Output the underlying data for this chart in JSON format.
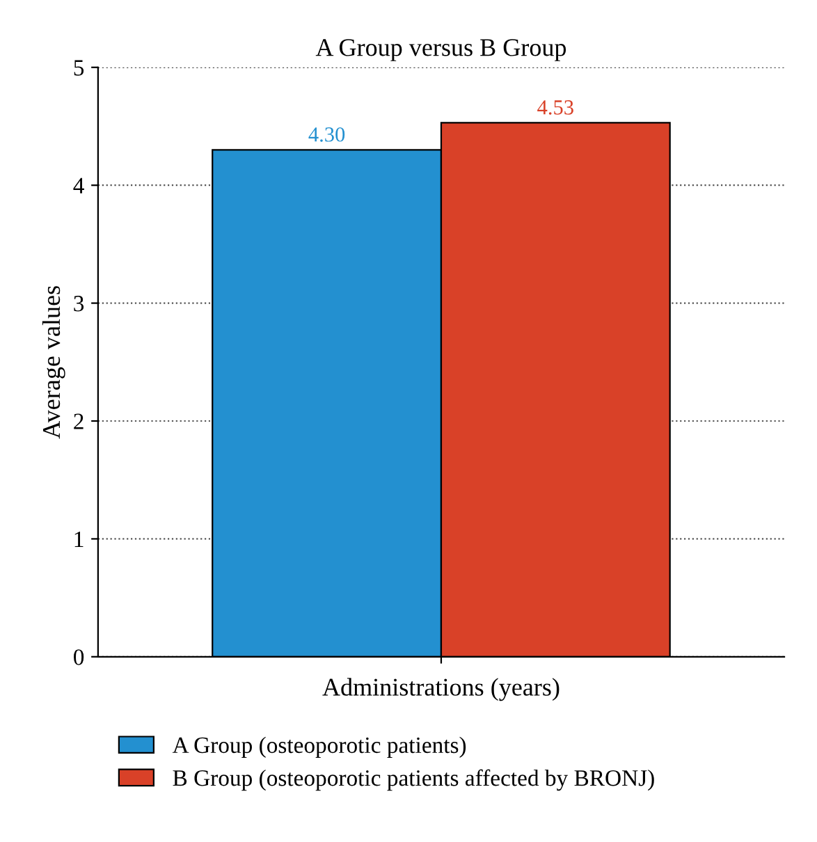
{
  "chart_data": {
    "type": "bar",
    "title": "A Group versus B Group",
    "xlabel": "Administrations (years)",
    "ylabel": "Average values",
    "categories": [
      null
    ],
    "series": [
      {
        "name": "A Group (osteoporotic patients)",
        "color": "#2390d0",
        "values": [
          4.3
        ],
        "value_labels": [
          "4.30"
        ]
      },
      {
        "name": "B Group (osteoporotic patients affected by BRONJ)",
        "color": "#d94128",
        "values": [
          4.53
        ],
        "value_labels": [
          "4.53"
        ]
      }
    ],
    "ylim": [
      0,
      5
    ],
    "yticks": [
      0,
      1,
      2,
      3,
      4,
      5
    ],
    "grid": "y",
    "legend": "bottom"
  }
}
